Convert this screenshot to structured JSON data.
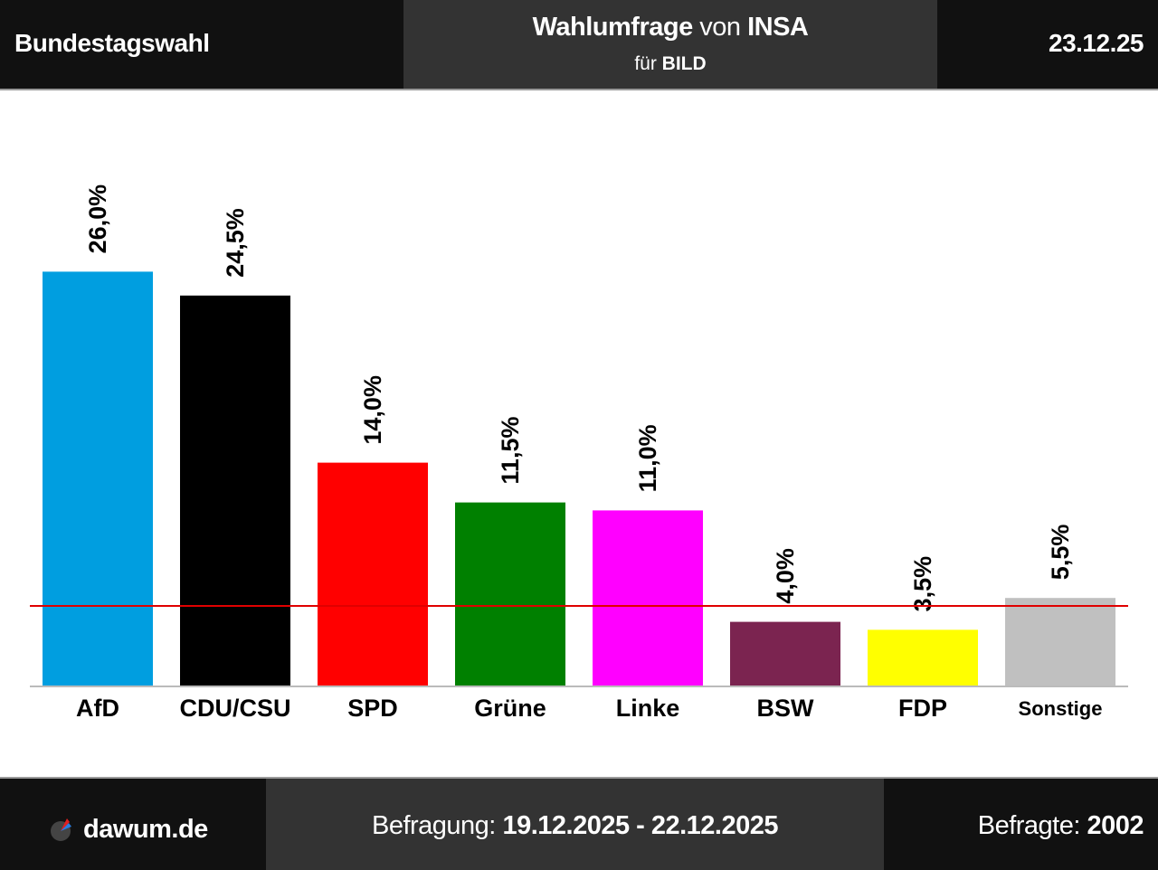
{
  "header": {
    "election": "Bundestagswahl",
    "title_bold1": "Wahlumfrage",
    "title_mid": " von ",
    "title_bold2": "INSA",
    "subtitle_prefix": "für ",
    "subtitle_bold": "BILD",
    "date": "23.12.25"
  },
  "chart_data": {
    "type": "bar",
    "categories": [
      "AfD",
      "CDU/CSU",
      "SPD",
      "Grüne",
      "Linke",
      "BSW",
      "FDP",
      "Sonstige"
    ],
    "values": [
      26.0,
      24.5,
      14.0,
      11.5,
      11.0,
      4.0,
      3.5,
      5.5
    ],
    "value_labels": [
      "26,0%",
      "24,5%",
      "14,0%",
      "11,5%",
      "11,0%",
      "4,0%",
      "3,5%",
      "5,5%"
    ],
    "colors": [
      "#009ee0",
      "#000000",
      "#ff0000",
      "#008000",
      "#ff00ff",
      "#7b2450",
      "#ffff00",
      "#c0c0c0"
    ],
    "threshold": 5,
    "threshold_color": "#e00000",
    "ylim": [
      0,
      30
    ],
    "title": "",
    "xlabel": "",
    "ylabel": "",
    "grid": false
  },
  "footer": {
    "site": "dawum.de",
    "period_label": "Befragung: ",
    "period_value": "19.12.2025 - 22.12.2025",
    "respondents_label": "Befragte: ",
    "respondents_value": "2002",
    "logo_icon": "dawum-logo-icon"
  }
}
